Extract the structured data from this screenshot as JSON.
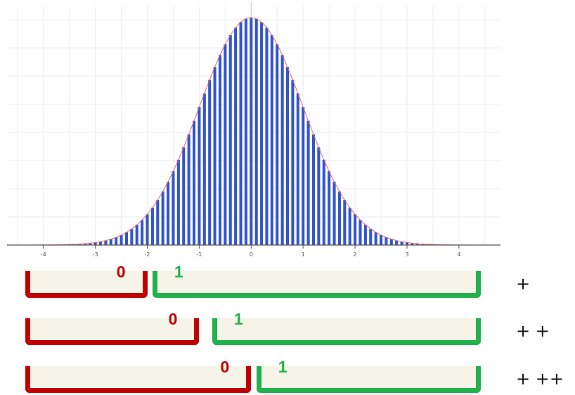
{
  "chart_data": {
    "type": "bar",
    "xlim": [
      -4.7,
      4.8
    ],
    "ylim": [
      0,
      0.42
    ],
    "grid": true,
    "x_ticks": [
      "-4",
      "-3",
      "-2",
      "-1",
      "0",
      "1",
      "2",
      "3",
      "4"
    ],
    "bin_width": 0.1,
    "x": [
      -4.0,
      -3.9,
      -3.8,
      -3.7,
      -3.6,
      -3.5,
      -3.4,
      -3.3,
      -3.2,
      -3.1,
      -3.0,
      -2.9,
      -2.8,
      -2.7,
      -2.6,
      -2.5,
      -2.4,
      -2.3,
      -2.2,
      -2.1,
      -2.0,
      -1.9,
      -1.8,
      -1.7,
      -1.6,
      -1.5,
      -1.4,
      -1.3,
      -1.2,
      -1.1,
      -1.0,
      -0.9,
      -0.8,
      -0.7,
      -0.6,
      -0.5,
      -0.4,
      -0.3,
      -0.2,
      -0.1,
      0.0,
      0.1,
      0.2,
      0.3,
      0.4,
      0.5,
      0.6,
      0.7,
      0.8,
      0.9,
      1.0,
      1.1,
      1.2,
      1.3,
      1.4,
      1.5,
      1.6,
      1.7,
      1.8,
      1.9,
      2.0,
      2.1,
      2.2,
      2.3,
      2.4,
      2.5,
      2.6,
      2.7,
      2.8,
      2.9,
      3.0,
      3.1,
      3.2,
      3.3,
      3.4,
      3.5,
      3.6,
      3.7,
      3.8,
      3.9,
      4.0
    ],
    "values": [
      0.0001,
      0.0002,
      0.0003,
      0.0004,
      0.0006,
      0.0009,
      0.0012,
      0.0017,
      0.0024,
      0.0033,
      0.0044,
      0.006,
      0.0079,
      0.0104,
      0.0136,
      0.0175,
      0.0224,
      0.0283,
      0.0355,
      0.044,
      0.054,
      0.0656,
      0.079,
      0.094,
      0.1109,
      0.1295,
      0.1497,
      0.1714,
      0.1942,
      0.2179,
      0.242,
      0.2661,
      0.2897,
      0.3123,
      0.3332,
      0.3521,
      0.3683,
      0.3814,
      0.391,
      0.397,
      0.3989,
      0.397,
      0.391,
      0.3814,
      0.3683,
      0.3521,
      0.3332,
      0.3123,
      0.2897,
      0.2661,
      0.242,
      0.2179,
      0.1942,
      0.1714,
      0.1497,
      0.1295,
      0.1109,
      0.094,
      0.079,
      0.0656,
      0.054,
      0.044,
      0.0355,
      0.0283,
      0.0224,
      0.0175,
      0.0136,
      0.0104,
      0.0079,
      0.006,
      0.0044,
      0.0033,
      0.0024,
      0.0017,
      0.0012,
      0.0009,
      0.0006,
      0.0004,
      0.0003,
      0.0002,
      0.0001
    ],
    "curve": "normal-density",
    "colors": {
      "bar": "#3355cc",
      "curve": "#e46a6a",
      "grid": "#eeeeee",
      "axis": "#555555"
    }
  },
  "rows": [
    {
      "operator": "+",
      "zero": {
        "label": "0",
        "from": -4.7,
        "to": -2.0
      },
      "one": {
        "label": "1",
        "from": -1.9,
        "to": 4.5
      }
    },
    {
      "operator": "+ +",
      "zero": {
        "label": "0",
        "from": -4.7,
        "to": -1.0
      },
      "one": {
        "label": "1",
        "from": -0.75,
        "to": 4.5
      }
    },
    {
      "operator": "+ ++",
      "zero": {
        "label": "0",
        "from": -4.7,
        "to": 0.0
      },
      "one": {
        "label": "1",
        "from": 0.1,
        "to": 4.5
      }
    }
  ],
  "colors": {
    "zero": "#c00000",
    "one": "#22b14c",
    "fill": "#f6f4e6"
  }
}
